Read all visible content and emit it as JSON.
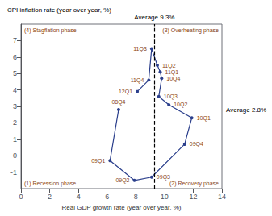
{
  "chart_data": {
    "type": "line",
    "x": [
      6.8,
      6.2,
      7.9,
      9.1,
      11.4,
      11.9,
      10.3,
      9.6,
      9.8,
      9.7,
      9.5,
      9.1,
      8.9,
      8.1
    ],
    "values": [
      2.8,
      -0.3,
      -1.5,
      -1.3,
      0.7,
      2.3,
      3.1,
      3.6,
      4.7,
      5.1,
      5.5,
      6.5,
      4.6,
      3.9
    ],
    "labels": [
      "08Q4",
      "09Q1",
      "09Q2",
      "09Q3",
      "09Q4",
      "10Q1",
      "10Q2",
      "10Q3",
      "10Q4",
      "11Q1",
      "11Q2",
      "11Q3",
      "11Q4",
      "12Q1"
    ],
    "label_color": "#8B4513",
    "color": "#2b3f8c",
    "marker": "circle",
    "xlabel": "Real GDP growth rate (year over year, %)",
    "ylabel": "CPI inflation rate (year over year, %)",
    "xlim": [
      0,
      14
    ],
    "ylim": [
      -2,
      8
    ],
    "xticks": [
      0,
      2,
      4,
      6,
      8,
      10,
      12,
      14
    ],
    "yticks": [
      -1,
      0,
      1,
      2,
      3,
      4,
      5,
      6,
      7
    ],
    "grid": false,
    "reference_lines": [
      {
        "axis": "x",
        "value": 9.3,
        "label": "Average 9.3%",
        "color": "black",
        "line_style": "dashed"
      },
      {
        "axis": "y",
        "value": 2.8,
        "label": "Average 2.8%",
        "color": "black",
        "line_style": "dashed"
      },
      {
        "axis": "y",
        "value": 0,
        "color": "gray",
        "line_style": "solid"
      }
    ],
    "annotations": [
      {
        "text": "(1) Recession phase",
        "color": "#8B4513"
      },
      {
        "text": "(2) Recovery phase",
        "color": "#8B4513"
      },
      {
        "text": "(3) Overheating phase",
        "color": "#8B4513"
      },
      {
        "text": "(4) Stagflation phase",
        "color": "#8B4513"
      }
    ]
  }
}
